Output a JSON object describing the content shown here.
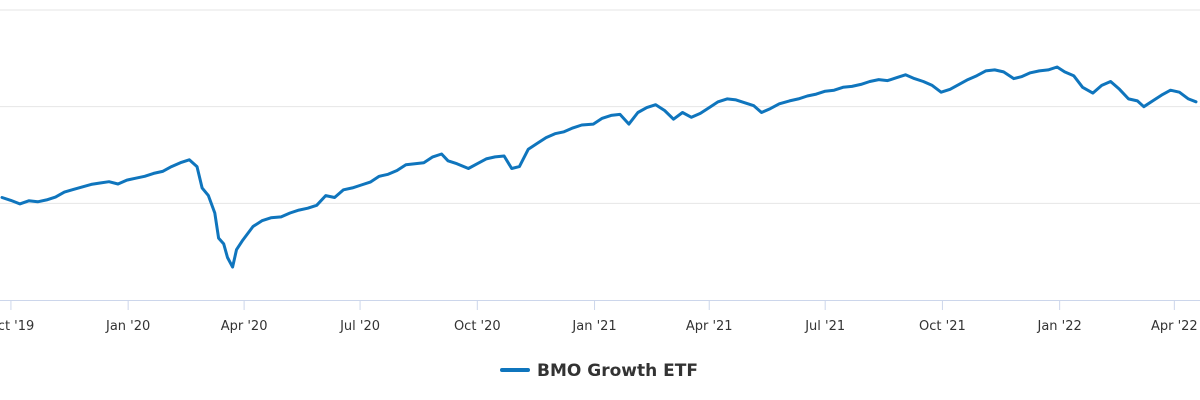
{
  "chart_data": {
    "type": "line",
    "title": "",
    "xlabel": "",
    "ylabel": "",
    "grid": true,
    "y_tick_labels_shown": false,
    "legend_position": "bottom-center",
    "series": [
      {
        "name": "BMO Growth ETF",
        "color": "#0f75bd",
        "points": [
          [
            "2019-09-24",
            53.0
          ],
          [
            "2019-10-01",
            51.5
          ],
          [
            "2019-10-08",
            49.7
          ],
          [
            "2019-10-15",
            51.3
          ],
          [
            "2019-10-22",
            50.8
          ],
          [
            "2019-10-29",
            51.8
          ],
          [
            "2019-11-05",
            53.2
          ],
          [
            "2019-11-12",
            55.8
          ],
          [
            "2019-11-19",
            57.2
          ],
          [
            "2019-11-26",
            58.5
          ],
          [
            "2019-12-03",
            59.8
          ],
          [
            "2019-12-10",
            60.5
          ],
          [
            "2019-12-17",
            61.2
          ],
          [
            "2019-12-24",
            60.0
          ],
          [
            "2019-12-31",
            62.0
          ],
          [
            "2020-01-07",
            63.0
          ],
          [
            "2020-01-14",
            64.0
          ],
          [
            "2020-01-21",
            65.5
          ],
          [
            "2020-01-28",
            66.5
          ],
          [
            "2020-02-04",
            69.0
          ],
          [
            "2020-02-11",
            71.0
          ],
          [
            "2020-02-18",
            72.5
          ],
          [
            "2020-02-24",
            69.0
          ],
          [
            "2020-02-28",
            58.0
          ],
          [
            "2020-03-04",
            54.0
          ],
          [
            "2020-03-09",
            45.0
          ],
          [
            "2020-03-12",
            32.0
          ],
          [
            "2020-03-16",
            29.0
          ],
          [
            "2020-03-19",
            22.0
          ],
          [
            "2020-03-23",
            17.0
          ],
          [
            "2020-03-26",
            26.0
          ],
          [
            "2020-03-31",
            31.0
          ],
          [
            "2020-04-08",
            38.0
          ],
          [
            "2020-04-15",
            41.0
          ],
          [
            "2020-04-22",
            42.5
          ],
          [
            "2020-04-30",
            43.0
          ],
          [
            "2020-05-07",
            45.0
          ],
          [
            "2020-05-14",
            46.5
          ],
          [
            "2020-05-21",
            47.5
          ],
          [
            "2020-05-28",
            49.0
          ],
          [
            "2020-06-04",
            54.0
          ],
          [
            "2020-06-11",
            53.0
          ],
          [
            "2020-06-18",
            57.0
          ],
          [
            "2020-06-25",
            58.0
          ],
          [
            "2020-07-02",
            59.5
          ],
          [
            "2020-07-09",
            61.0
          ],
          [
            "2020-07-16",
            64.0
          ],
          [
            "2020-07-23",
            65.0
          ],
          [
            "2020-07-30",
            67.0
          ],
          [
            "2020-08-06",
            70.0
          ],
          [
            "2020-08-13",
            70.5
          ],
          [
            "2020-08-20",
            71.0
          ],
          [
            "2020-08-27",
            74.0
          ],
          [
            "2020-09-03",
            75.5
          ],
          [
            "2020-09-08",
            72.0
          ],
          [
            "2020-09-15",
            70.5
          ],
          [
            "2020-09-24",
            68.0
          ],
          [
            "2020-10-01",
            70.5
          ],
          [
            "2020-10-08",
            73.0
          ],
          [
            "2020-10-15",
            74.0
          ],
          [
            "2020-10-22",
            74.5
          ],
          [
            "2020-10-28",
            68.0
          ],
          [
            "2020-11-03",
            69.0
          ],
          [
            "2020-11-10",
            78.0
          ],
          [
            "2020-11-17",
            81.0
          ],
          [
            "2020-11-24",
            84.0
          ],
          [
            "2020-12-01",
            86.0
          ],
          [
            "2020-12-08",
            87.0
          ],
          [
            "2020-12-15",
            89.0
          ],
          [
            "2020-12-22",
            90.5
          ],
          [
            "2020-12-31",
            91.0
          ],
          [
            "2021-01-07",
            94.0
          ],
          [
            "2021-01-14",
            95.5
          ],
          [
            "2021-01-21",
            96.0
          ],
          [
            "2021-01-28",
            91.0
          ],
          [
            "2021-02-04",
            97.0
          ],
          [
            "2021-02-11",
            99.5
          ],
          [
            "2021-02-18",
            101.0
          ],
          [
            "2021-02-25",
            98.0
          ],
          [
            "2021-03-04",
            93.5
          ],
          [
            "2021-03-11",
            97.0
          ],
          [
            "2021-03-18",
            94.5
          ],
          [
            "2021-03-25",
            96.5
          ],
          [
            "2021-04-01",
            99.5
          ],
          [
            "2021-04-08",
            102.5
          ],
          [
            "2021-04-15",
            104.0
          ],
          [
            "2021-04-22",
            103.5
          ],
          [
            "2021-04-29",
            102.0
          ],
          [
            "2021-05-06",
            100.5
          ],
          [
            "2021-05-12",
            97.0
          ],
          [
            "2021-05-19",
            99.0
          ],
          [
            "2021-05-26",
            101.5
          ],
          [
            "2021-06-03",
            103.0
          ],
          [
            "2021-06-10",
            104.0
          ],
          [
            "2021-06-17",
            105.5
          ],
          [
            "2021-06-24",
            106.5
          ],
          [
            "2021-07-01",
            108.0
          ],
          [
            "2021-07-08",
            108.5
          ],
          [
            "2021-07-15",
            110.0
          ],
          [
            "2021-07-22",
            110.5
          ],
          [
            "2021-07-29",
            111.5
          ],
          [
            "2021-08-05",
            113.0
          ],
          [
            "2021-08-12",
            114.0
          ],
          [
            "2021-08-19",
            113.5
          ],
          [
            "2021-08-26",
            115.0
          ],
          [
            "2021-09-02",
            116.5
          ],
          [
            "2021-09-09",
            114.5
          ],
          [
            "2021-09-16",
            113.0
          ],
          [
            "2021-09-23",
            111.0
          ],
          [
            "2021-09-30",
            107.5
          ],
          [
            "2021-10-07",
            109.0
          ],
          [
            "2021-10-14",
            111.5
          ],
          [
            "2021-10-21",
            114.0
          ],
          [
            "2021-10-28",
            116.0
          ],
          [
            "2021-11-04",
            118.5
          ],
          [
            "2021-11-11",
            119.0
          ],
          [
            "2021-11-18",
            118.0
          ],
          [
            "2021-11-26",
            114.5
          ],
          [
            "2021-12-02",
            115.5
          ],
          [
            "2021-12-09",
            117.5
          ],
          [
            "2021-12-16",
            118.5
          ],
          [
            "2021-12-23",
            119.0
          ],
          [
            "2021-12-30",
            120.5
          ],
          [
            "2022-01-05",
            118.0
          ],
          [
            "2022-01-12",
            116.0
          ],
          [
            "2022-01-19",
            110.0
          ],
          [
            "2022-01-27",
            107.0
          ],
          [
            "2022-02-03",
            111.0
          ],
          [
            "2022-02-10",
            113.0
          ],
          [
            "2022-02-17",
            109.0
          ],
          [
            "2022-02-24",
            104.0
          ],
          [
            "2022-03-03",
            103.0
          ],
          [
            "2022-03-08",
            100.0
          ],
          [
            "2022-03-15",
            103.0
          ],
          [
            "2022-03-22",
            106.0
          ],
          [
            "2022-03-29",
            108.5
          ],
          [
            "2022-04-05",
            107.5
          ],
          [
            "2022-04-12",
            104.0
          ],
          [
            "2022-04-18",
            102.5
          ]
        ]
      }
    ],
    "x_ticks": [
      {
        "date": "2019-10-01",
        "label": "Oct '19"
      },
      {
        "date": "2020-01-01",
        "label": "Jan '20"
      },
      {
        "date": "2020-04-01",
        "label": "Apr '20"
      },
      {
        "date": "2020-07-01",
        "label": "Jul '20"
      },
      {
        "date": "2020-10-01",
        "label": "Oct '20"
      },
      {
        "date": "2021-01-01",
        "label": "Jan '21"
      },
      {
        "date": "2021-04-01",
        "label": "Apr '21"
      },
      {
        "date": "2021-07-01",
        "label": "Jul '21"
      },
      {
        "date": "2021-10-01",
        "label": "Oct '21"
      },
      {
        "date": "2022-01-01",
        "label": "Jan '22"
      },
      {
        "date": "2022-04-01",
        "label": "Apr '22"
      }
    ],
    "xlim": [
      "2019-09-24",
      "2022-04-18"
    ],
    "ylim": [
      0,
      150
    ],
    "y_grid_values": [
      50,
      100,
      150
    ],
    "legend": [
      {
        "label": "BMO Growth ETF",
        "color": "#0f75bd"
      }
    ]
  }
}
